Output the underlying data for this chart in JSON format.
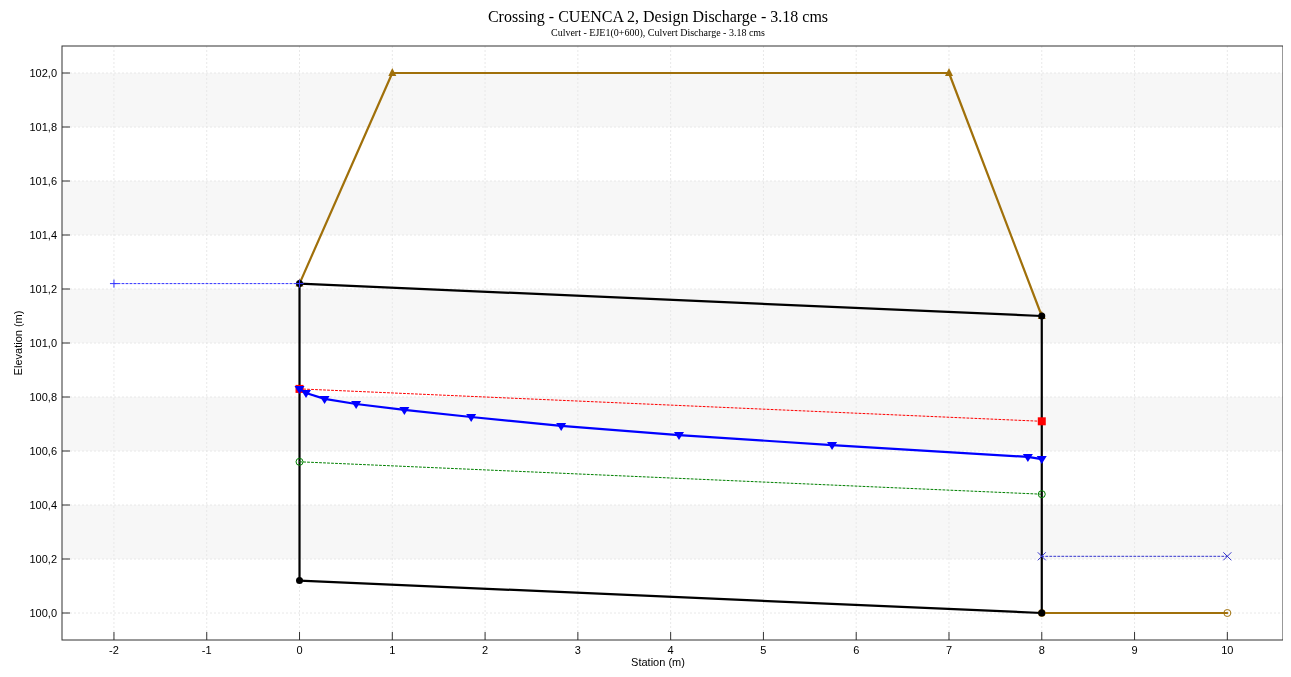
{
  "chart_data": {
    "type": "line",
    "title": "Crossing - CUENCA 2, Design Discharge - 3.18 cms",
    "subtitle": "Culvert - EJE1(0+600), Culvert Discharge - 3.18 cms",
    "xlabel": "Station (m)",
    "ylabel": "Elevation (m)",
    "xlim": [
      -2.56,
      10.6
    ],
    "ylim": [
      99.9,
      102.1
    ],
    "xticks": [
      -2,
      -1,
      0,
      1,
      2,
      3,
      4,
      5,
      6,
      7,
      8,
      9,
      10
    ],
    "yticks": [
      {
        "value": 100,
        "label": "100,0"
      },
      {
        "value": 100.2,
        "label": "100,2"
      },
      {
        "value": 100.4,
        "label": "100,4"
      },
      {
        "value": 100.6,
        "label": "100,6"
      },
      {
        "value": 100.8,
        "label": "100,8"
      },
      {
        "value": 101,
        "label": "101,0"
      },
      {
        "value": 101.2,
        "label": "101,2"
      },
      {
        "value": 101.4,
        "label": "101,4"
      },
      {
        "value": 101.6,
        "label": "101,6"
      },
      {
        "value": 101.8,
        "label": "101,8"
      },
      {
        "value": 102,
        "label": "102,0"
      }
    ],
    "grid": true,
    "series": [
      {
        "color": "#a0700a",
        "marker": "triangle",
        "line_style": "solid",
        "x": [
          0,
          1,
          7,
          8
        ],
        "values": [
          101.22,
          102,
          102,
          101.1
        ]
      },
      {
        "color": "#a0700a",
        "marker": "circle-open",
        "line_style": "solid",
        "x": [
          8,
          10
        ],
        "values": [
          100,
          100
        ]
      },
      {
        "color": "#000000",
        "marker": "circle",
        "line_style": "solid",
        "x": [
          0,
          8
        ],
        "values": [
          101.22,
          101.1
        ]
      },
      {
        "color": "#000000",
        "marker": "circle",
        "line_style": "solid",
        "x": [
          0,
          8
        ],
        "values": [
          100.12,
          100
        ]
      },
      {
        "color": "#000000",
        "marker": "none",
        "line_style": "solid",
        "x": [
          0,
          0
        ],
        "values": [
          100.12,
          101.22
        ]
      },
      {
        "color": "#000000",
        "marker": "none",
        "line_style": "solid",
        "x": [
          8,
          8
        ],
        "values": [
          100,
          101.1
        ]
      },
      {
        "color": "#3333ff",
        "marker": "cross",
        "line_style": "dotted",
        "x": [
          -2,
          0
        ],
        "values": [
          101.22,
          101.22
        ]
      },
      {
        "color": "#3333cc",
        "marker": "x",
        "line_style": "dotted",
        "x": [
          8,
          10
        ],
        "values": [
          100.21,
          100.21
        ]
      },
      {
        "color": "#ff0000",
        "marker": "square",
        "line_style": "dotted",
        "x": [
          0,
          8
        ],
        "values": [
          100.83,
          100.71
        ]
      },
      {
        "color": "#0000ff",
        "marker": "triangle-down",
        "line_style": "solid",
        "x": [
          0,
          0.07,
          0.27,
          0.61,
          1.13,
          1.85,
          2.82,
          4.09,
          5.74,
          7.85,
          8
        ],
        "values": [
          100.83,
          100.815,
          100.793,
          100.774,
          100.752,
          100.726,
          100.693,
          100.659,
          100.622,
          100.578,
          100.57
        ]
      },
      {
        "color": "#008000",
        "marker": "circle-open",
        "line_style": "dotted",
        "x": [
          0,
          8
        ],
        "values": [
          100.56,
          100.44
        ]
      }
    ]
  }
}
